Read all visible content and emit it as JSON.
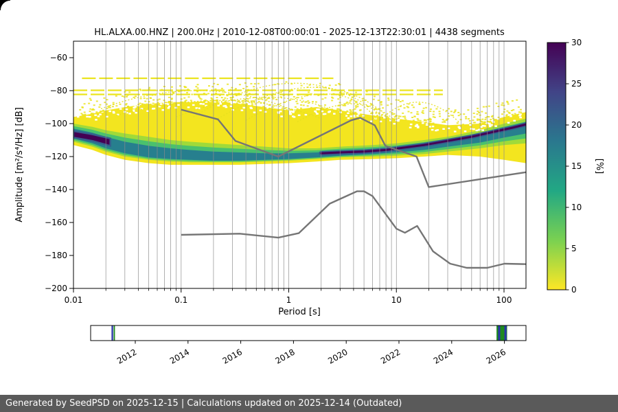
{
  "title": "HL.ALXA.00.HNZ | 200.0Hz | 2010-12-08T00:00:01 - 2025-12-13T22:30:01 | 4438 segments",
  "footer": "Generated by SeedPSD on 2025-12-15 | Calculations updated on 2025-12-14 (Outdated)",
  "axes": {
    "xlabel": "Period [s]",
    "ylabel": "Amplitude [m²/s⁴/Hz] [dB]",
    "xlim": [
      0.01,
      160
    ],
    "ylim": [
      -200,
      -50
    ],
    "x_ticks": [
      0.01,
      0.1,
      1,
      10,
      100
    ],
    "x_tick_labels": [
      "0.01",
      "0.1",
      "1",
      "10",
      "100"
    ],
    "y_ticks": [
      -60,
      -80,
      -100,
      -120,
      -140,
      -160,
      -180,
      -200
    ],
    "y_tick_labels": [
      "−60",
      "−80",
      "−100",
      "−120",
      "−140",
      "−160",
      "−180",
      "−200"
    ],
    "grid": "vertical log major+minor"
  },
  "colorbar": {
    "label": "[%]",
    "lim": [
      0,
      30
    ],
    "ticks": [
      0,
      5,
      10,
      15,
      20,
      25,
      30
    ],
    "tick_labels": [
      "0",
      "5",
      "10",
      "15",
      "20",
      "25",
      "30"
    ],
    "colormap": "viridis reversed (0% = yellow, 30% = dark purple)",
    "gradient_top_to_bottom": [
      "#440154",
      "#414487",
      "#2a788e",
      "#22a884",
      "#7ad151",
      "#fde725"
    ]
  },
  "chart_data": {
    "type": "heatmap",
    "title": "HL.ALXA.00.HNZ | 200.0Hz | 2010-12-08T00:00:01 - 2025-12-13T22:30:01 | 4438 segments",
    "xlabel": "Period [s]",
    "ylabel": "Amplitude [m²/s⁴/Hz] [dB]",
    "x_scale": "log",
    "xlim": [
      0.01,
      160
    ],
    "ylim": [
      -200,
      -50
    ],
    "value_range_percent": [
      0,
      30
    ],
    "ppsd": {
      "periods": [
        0.01,
        0.015,
        0.02,
        0.03,
        0.05,
        0.08,
        0.12,
        0.2,
        0.35,
        0.6,
        1.0,
        1.8,
        3.0,
        6.0,
        10,
        18,
        30,
        60,
        100,
        160
      ],
      "outer_top_db": [
        -96,
        -94,
        -92,
        -90,
        -88,
        -87,
        -87,
        -86,
        -88,
        -90,
        -92,
        -90,
        -92,
        -95,
        -97,
        -99,
        -101,
        -100,
        -96,
        -93
      ],
      "outer_bottom_db": [
        -113,
        -116,
        -119,
        -122,
        -124,
        -125,
        -125,
        -125,
        -125,
        -124.5,
        -124,
        -123,
        -122,
        -121.5,
        -121,
        -120,
        -119,
        -120,
        -122,
        -124
      ],
      "green_top_db": [
        -100,
        -102,
        -104,
        -106,
        -108,
        -110,
        -111,
        -112,
        -113,
        -114,
        -115,
        -115,
        -114,
        -113,
        -112,
        -110,
        -108,
        -104,
        -100,
        -97
      ],
      "green_bottom_db": [
        -111,
        -114,
        -117,
        -120,
        -122,
        -123,
        -123.5,
        -123.5,
        -123.5,
        -123,
        -122.5,
        -121.5,
        -120.5,
        -120,
        -119.5,
        -118.5,
        -117,
        -115,
        -113,
        -112
      ],
      "core_top_db": [
        -103,
        -105.5,
        -108,
        -111,
        -113.5,
        -115,
        -116,
        -117,
        -117.5,
        -118,
        -118,
        -117.5,
        -116.5,
        -115.5,
        -114.5,
        -112.5,
        -110.5,
        -107,
        -103.5,
        -100.5
      ],
      "core_bottom_db": [
        -109,
        -112,
        -115,
        -118,
        -120.5,
        -121.5,
        -122,
        -122.5,
        -122.5,
        -122,
        -121.5,
        -120.5,
        -119.5,
        -118.5,
        -117.5,
        -116,
        -114,
        -111.5,
        -108.5,
        -106
      ],
      "mode_left_blob": {
        "periods": [
          0.01,
          0.015,
          0.022
        ],
        "top_db": [
          -104.5,
          -106.5,
          -109
        ],
        "bottom_db": [
          -108.5,
          -110.5,
          -113.5
        ]
      },
      "mode_line": [
        [
          2,
          -118
        ],
        [
          3,
          -117.5
        ],
        [
          5,
          -117
        ],
        [
          8,
          -116
        ],
        [
          12,
          -114.5
        ],
        [
          18,
          -113
        ],
        [
          30,
          -110.5
        ],
        [
          50,
          -108
        ],
        [
          80,
          -105
        ],
        [
          120,
          -102.5
        ],
        [
          160,
          -100.5
        ]
      ]
    },
    "artifact_lines_db": [
      {
        "db": -72.5,
        "from_s": 0.012,
        "to_s": 2.6
      },
      {
        "db": -79.8,
        "from_s": 0.01,
        "to_s": 27
      },
      {
        "db": -82.3,
        "from_s": 0.01,
        "to_s": 27
      }
    ],
    "speckle_arcs": [
      [
        [
          0.13,
          -96
        ],
        [
          1.3,
          -75.5
        ],
        [
          7.5,
          -96
        ]
      ],
      [
        [
          0.22,
          -97
        ],
        [
          2.2,
          -78
        ],
        [
          9,
          -98
        ]
      ],
      [
        [
          0.4,
          -98
        ],
        [
          2.8,
          -82
        ],
        [
          6.5,
          -97
        ]
      ],
      [
        [
          0.09,
          -96
        ],
        [
          0.7,
          -84
        ],
        [
          3.5,
          -96
        ]
      ],
      [
        [
          1.2,
          -99
        ],
        [
          4.5,
          -88
        ],
        [
          10,
          -99
        ]
      ],
      [
        [
          0.018,
          -91
        ],
        [
          0.16,
          -80
        ],
        [
          1.2,
          -93
        ]
      ],
      [
        [
          7,
          -98
        ],
        [
          16,
          -87
        ],
        [
          38,
          -99
        ]
      ],
      [
        [
          0.025,
          -95
        ],
        [
          0.3,
          -86
        ],
        [
          2,
          -97
        ]
      ]
    ],
    "noise_models": {
      "color": "#757575",
      "nhnm": [
        [
          0.1,
          -91.5
        ],
        [
          0.22,
          -97.4
        ],
        [
          0.32,
          -110.5
        ],
        [
          0.8,
          -120
        ],
        [
          3.8,
          -98
        ],
        [
          4.6,
          -96.5
        ],
        [
          6.3,
          -101
        ],
        [
          7.9,
          -113.5
        ],
        [
          15.4,
          -120
        ],
        [
          20,
          -138.5
        ],
        [
          160,
          -129.5
        ]
      ],
      "nlnm": [
        [
          0.1,
          -167.5
        ],
        [
          0.35,
          -166.8
        ],
        [
          0.8,
          -169.2
        ],
        [
          1.24,
          -166.5
        ],
        [
          2.4,
          -148.6
        ],
        [
          4.3,
          -141.1
        ],
        [
          5,
          -141.1
        ],
        [
          6,
          -144
        ],
        [
          10,
          -163.8
        ],
        [
          12,
          -166.2
        ],
        [
          15.6,
          -162.1
        ],
        [
          21.9,
          -177.5
        ],
        [
          31.6,
          -185
        ],
        [
          45,
          -187.5
        ],
        [
          70,
          -187.5
        ],
        [
          101,
          -185
        ],
        [
          160,
          -185.3
        ]
      ]
    },
    "timeline": {
      "year_ticks": [
        2012,
        2014,
        2016,
        2018,
        2020,
        2022,
        2024,
        2026
      ],
      "year_labels": [
        "2012",
        "2014",
        "2016",
        "2018",
        "2020",
        "2022",
        "2024",
        "2026"
      ],
      "coverage_marks": [
        {
          "start": 2011.1,
          "end": 2011.16,
          "color": "#2a35a8"
        },
        {
          "start": 2011.18,
          "end": 2011.23,
          "color": "#1e8a1e"
        },
        {
          "start": 2025.7,
          "end": 2026.1,
          "color": "#1e8a1e"
        },
        {
          "start": 2025.76,
          "end": 2025.84,
          "color": "#2a35a8"
        },
        {
          "start": 2026.0,
          "end": 2026.08,
          "color": "#2a35a8"
        }
      ]
    }
  }
}
